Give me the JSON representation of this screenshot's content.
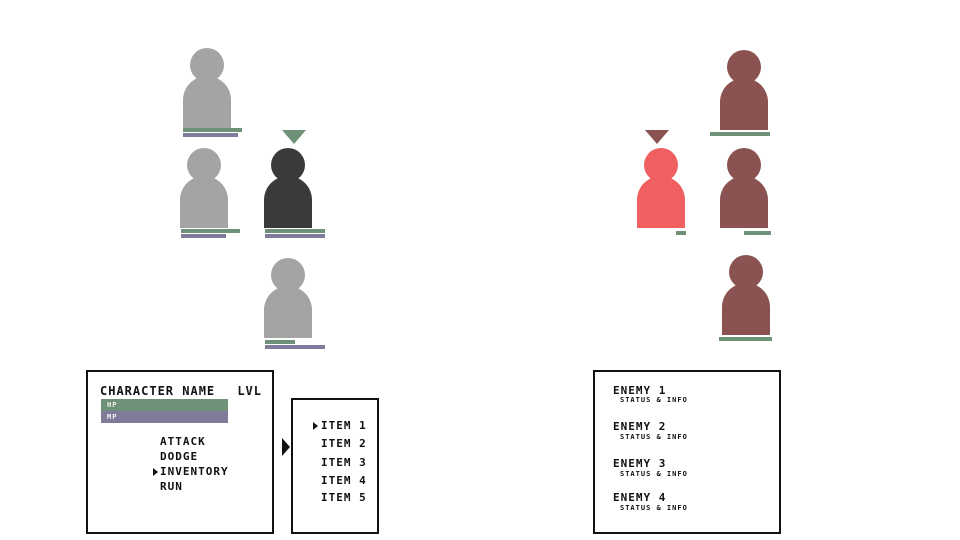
{
  "colors": {
    "ally_inactive": "#a4a4a4",
    "ally_active": "#3a3a3a",
    "enemy_inactive": "#8a5250",
    "enemy_active": "#f06060",
    "hp": "#6e9177",
    "mp": "#7f7b9a",
    "ally_marker": "#6e9177",
    "enemy_marker": "#8a5250"
  },
  "status_panel": {
    "character_name": "CHARACTER NAME",
    "level_label": "LVL",
    "hp_label": "HP",
    "mp_label": "MP"
  },
  "action_menu": {
    "items": [
      "ATTACK",
      "DODGE",
      "INVENTORY",
      "RUN"
    ],
    "selected": "INVENTORY"
  },
  "inventory": {
    "items": [
      "ITEM 1",
      "ITEM 2",
      "ITEM 3",
      "ITEM 4",
      "ITEM 5"
    ],
    "selected": "ITEM 1"
  },
  "enemies": [
    {
      "name": "ENEMY 1",
      "info": "STATUS & INFO"
    },
    {
      "name": "ENEMY 2",
      "info": "STATUS & INFO"
    },
    {
      "name": "ENEMY 3",
      "info": "STATUS & INFO"
    },
    {
      "name": "ENEMY 4",
      "info": "STATUS & INFO"
    }
  ]
}
